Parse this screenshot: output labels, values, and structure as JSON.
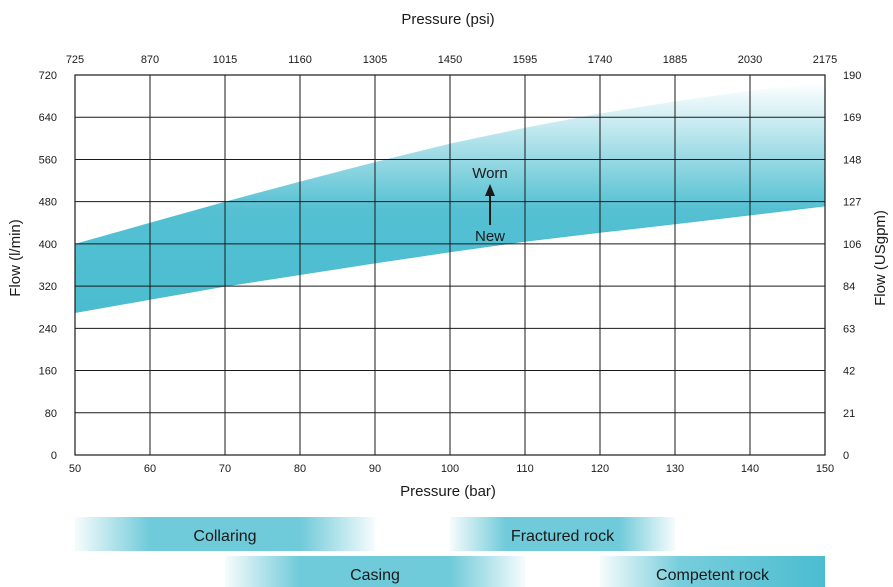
{
  "chart_data": {
    "type": "area",
    "title": "",
    "xlabel": "Pressure (bar)",
    "ylabel": "Flow (l/min)",
    "x2label": "Pressure (psi)",
    "y2label": "Flow (USgpm)",
    "xlim": [
      50,
      150
    ],
    "ylim": [
      0,
      720
    ],
    "x_ticks": [
      50,
      60,
      70,
      80,
      90,
      100,
      110,
      120,
      130,
      140,
      150
    ],
    "y_ticks": [
      0,
      80,
      160,
      240,
      320,
      400,
      480,
      560,
      640,
      720
    ],
    "x2_ticks": [
      "725",
      "870",
      "1015",
      "1160",
      "1305",
      "1450",
      "1595",
      "1740",
      "1885",
      "2030",
      "2175"
    ],
    "y2_ticks": [
      "0",
      "21",
      "42",
      "63",
      "84",
      "106",
      "127",
      "148",
      "169",
      "190"
    ],
    "grid": true,
    "band": {
      "color": "#4bbdd0",
      "lower_name": "New",
      "upper_name": "Worn",
      "x": [
        50,
        60,
        70,
        80,
        90,
        100,
        110,
        120,
        130,
        140,
        150
      ],
      "lower": [
        270,
        295,
        320,
        342,
        364,
        385,
        405,
        422,
        438,
        455,
        472
      ],
      "upper": [
        400,
        440,
        480,
        518,
        555,
        590,
        620,
        647,
        670,
        690,
        705
      ]
    },
    "annotations": {
      "worn": "Worn",
      "new": "New"
    },
    "applications": [
      {
        "label": "Collaring",
        "start": 50,
        "end": 90,
        "row": 0
      },
      {
        "label": "Fractured rock",
        "start": 100,
        "end": 130,
        "row": 0
      },
      {
        "label": "Casing",
        "start": 70,
        "end": 110,
        "row": 1
      },
      {
        "label": "Competent rock",
        "start": 120,
        "end": 150,
        "row": 1
      }
    ]
  }
}
